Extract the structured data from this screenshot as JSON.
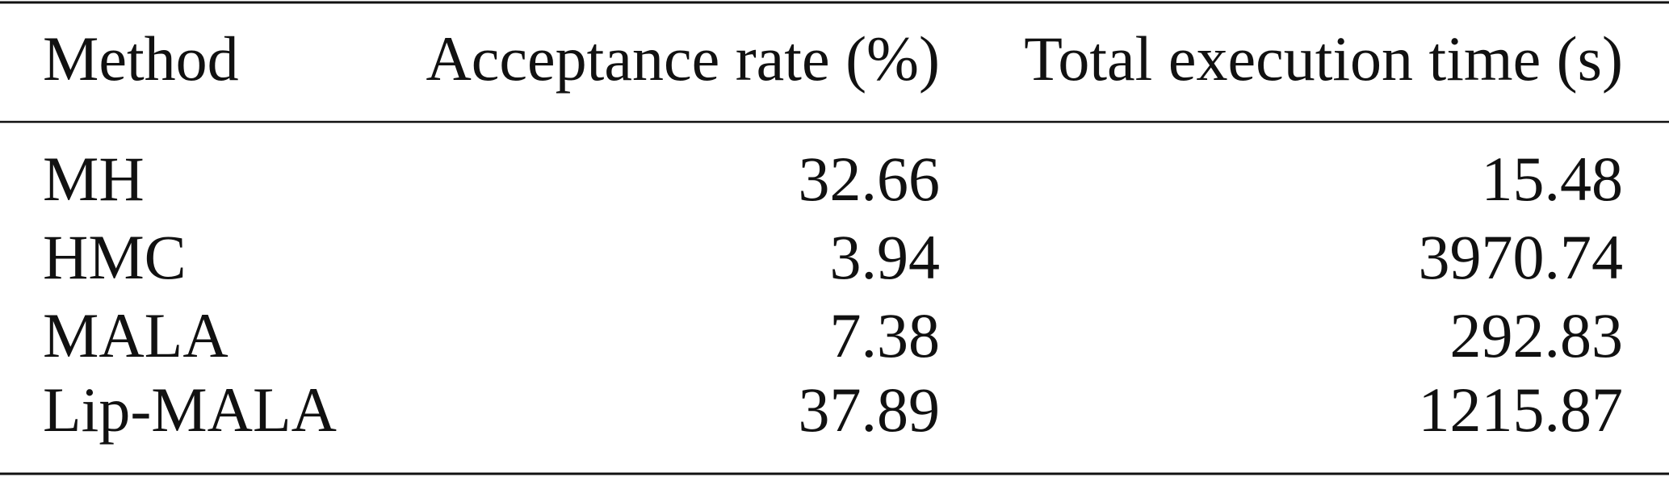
{
  "table": {
    "header": [
      "Method",
      "Acceptance rate (%)",
      "Total execution time (s)"
    ],
    "rows": [
      [
        "MH",
        "32.66",
        "15.48"
      ],
      [
        "HMC",
        "3.94",
        "3970.74"
      ],
      [
        "MALA",
        "7.38",
        "292.83"
      ],
      [
        "Lip-MALA",
        "37.89",
        "1215.87"
      ]
    ]
  }
}
